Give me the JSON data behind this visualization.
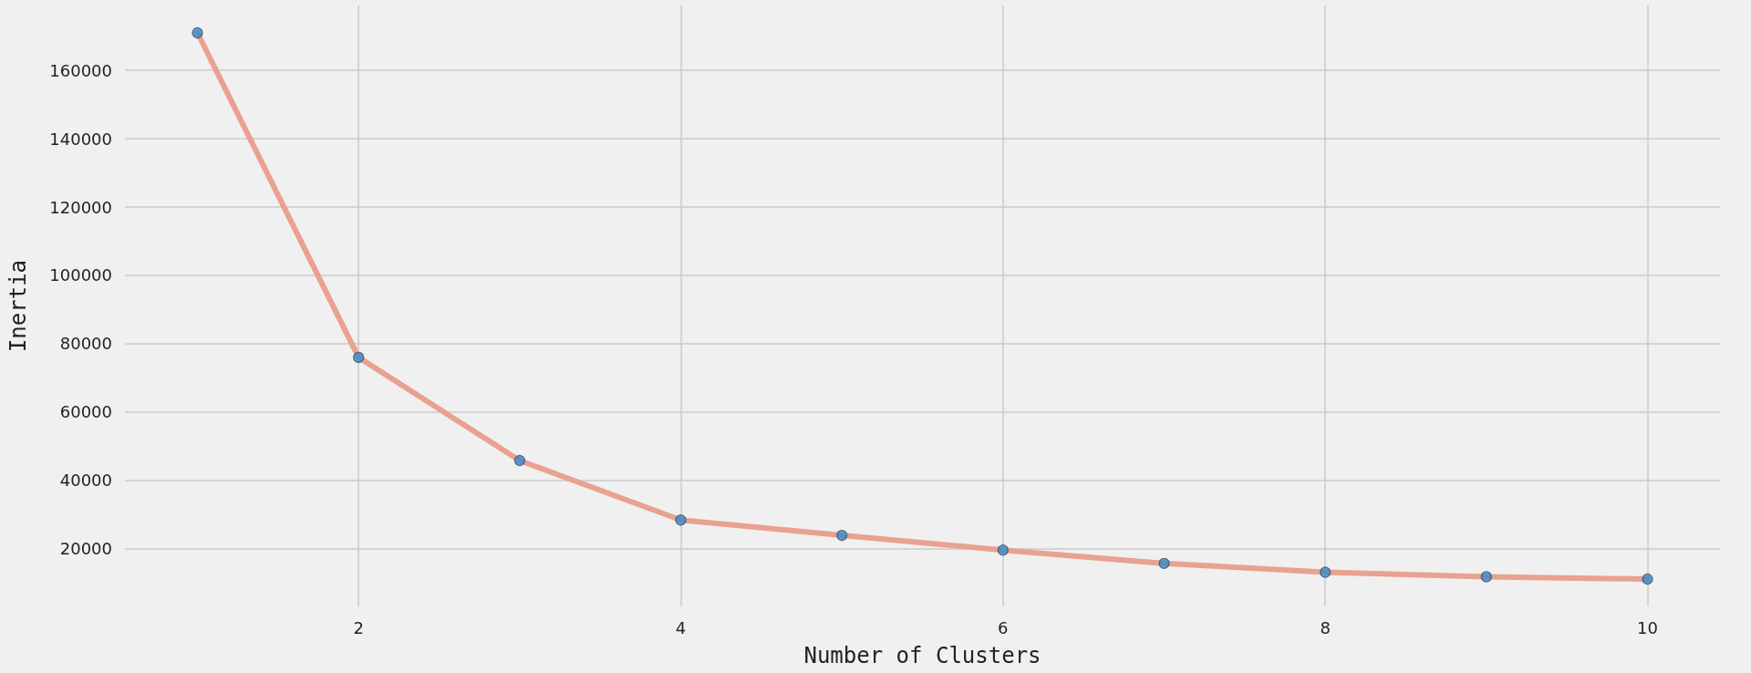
{
  "chart_data": {
    "type": "line",
    "xlabel": "Number of Clusters",
    "ylabel": "Inertia",
    "x": [
      1,
      2,
      3,
      4,
      5,
      6,
      7,
      8,
      9,
      10
    ],
    "series": [
      {
        "color": "#e9a190",
        "marker": "none",
        "values": [
          171000,
          76000,
          45800,
          28400,
          23900,
          19600,
          15700,
          13100,
          11800,
          11100
        ]
      },
      {
        "type": "scatter",
        "color": "#3a88c8",
        "marker": "circle",
        "values": [
          171000,
          76000,
          45800,
          28400,
          23900,
          19600,
          15700,
          13100,
          11800,
          11100
        ]
      }
    ],
    "xlim": [
      0.55,
      10.45
    ],
    "xticks": [
      2,
      4,
      6,
      8,
      10
    ],
    "ylim": [
      3100,
      179000
    ],
    "yticks": [
      20000,
      40000,
      60000,
      80000,
      100000,
      120000,
      140000,
      160000
    ],
    "grid": true
  }
}
